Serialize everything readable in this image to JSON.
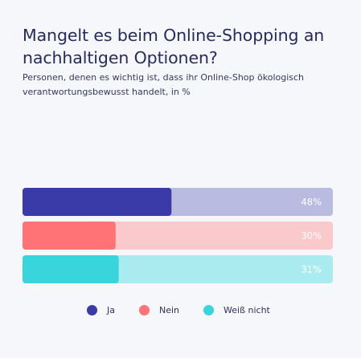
{
  "header": {
    "title": "Mangelt es beim Online-Shopping an nachhaltigen Optionen?",
    "subtitle": "Personen, denen es wichtig ist, dass ihr Online-Shop ökologisch verantwortungsbewusst handelt, in %"
  },
  "chart_data": {
    "type": "bar",
    "orientation": "horizontal",
    "title": "Mangelt es beim Online-Shopping an nachhaltigen Optionen?",
    "subtitle": "Personen, denen es wichtig ist, dass ihr Online-Shop ökologisch verantwortungsbewusst handelt, in %",
    "categories": [
      "Ja",
      "Nein",
      "Weiß nicht"
    ],
    "values": [
      48,
      30,
      31
    ],
    "value_labels": [
      "48%",
      "30%",
      "31%"
    ],
    "xlim": [
      0,
      100
    ],
    "colors": [
      "#3a3aa9",
      "#ff7275",
      "#38d6dc"
    ],
    "track_colors": [
      "#babbe1",
      "#f9c9cb",
      "#a9ebee"
    ],
    "label_color": "#ffffff",
    "grid": false,
    "legend_position": "bottom"
  }
}
